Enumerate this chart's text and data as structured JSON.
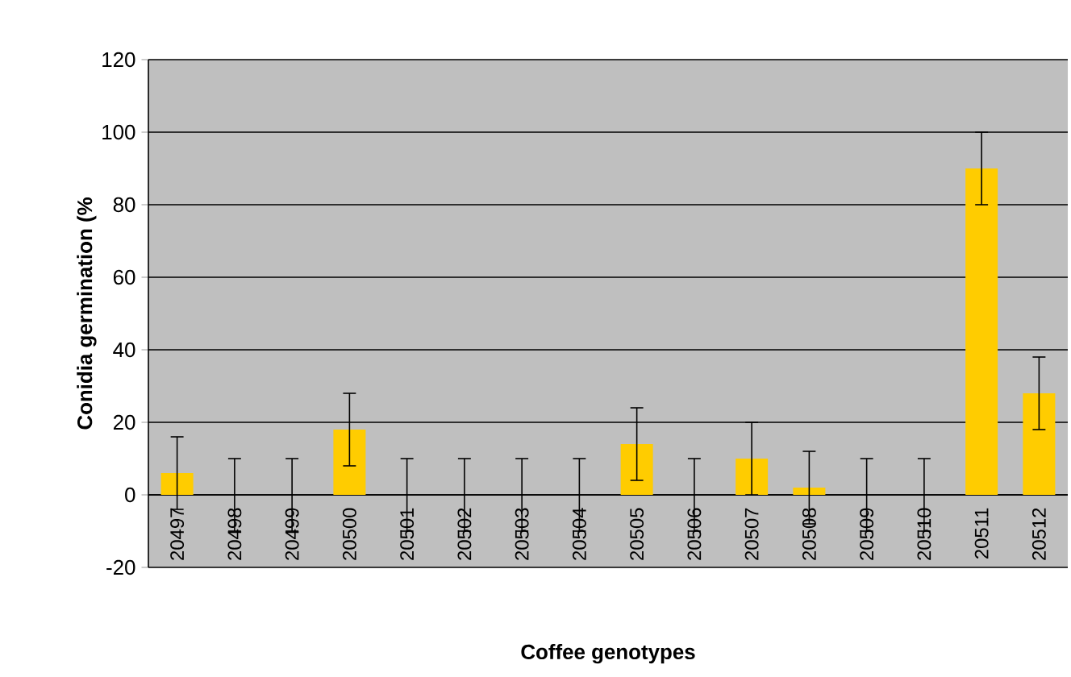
{
  "chart_data": {
    "type": "bar",
    "xlabel": "Coffee genotypes",
    "ylabel": "Conidia germination (%",
    "categories": [
      "20497",
      "20498",
      "20499",
      "20500",
      "20501",
      "20502",
      "20503",
      "20504",
      "20505",
      "20506",
      "20507",
      "20508",
      "20509",
      "20510",
      "20511",
      "20512"
    ],
    "values": [
      6,
      0,
      0,
      18,
      0,
      0,
      0,
      0,
      14,
      0,
      10,
      2,
      0,
      0,
      90,
      28
    ],
    "errors": [
      10,
      10,
      10,
      10,
      10,
      10,
      10,
      10,
      10,
      10,
      10,
      10,
      10,
      10,
      10,
      10
    ],
    "color": "#ffcc00",
    "ylim": [
      -20,
      120
    ],
    "yticks": [
      -20,
      0,
      20,
      40,
      60,
      80,
      100,
      120
    ],
    "grid": "y"
  }
}
